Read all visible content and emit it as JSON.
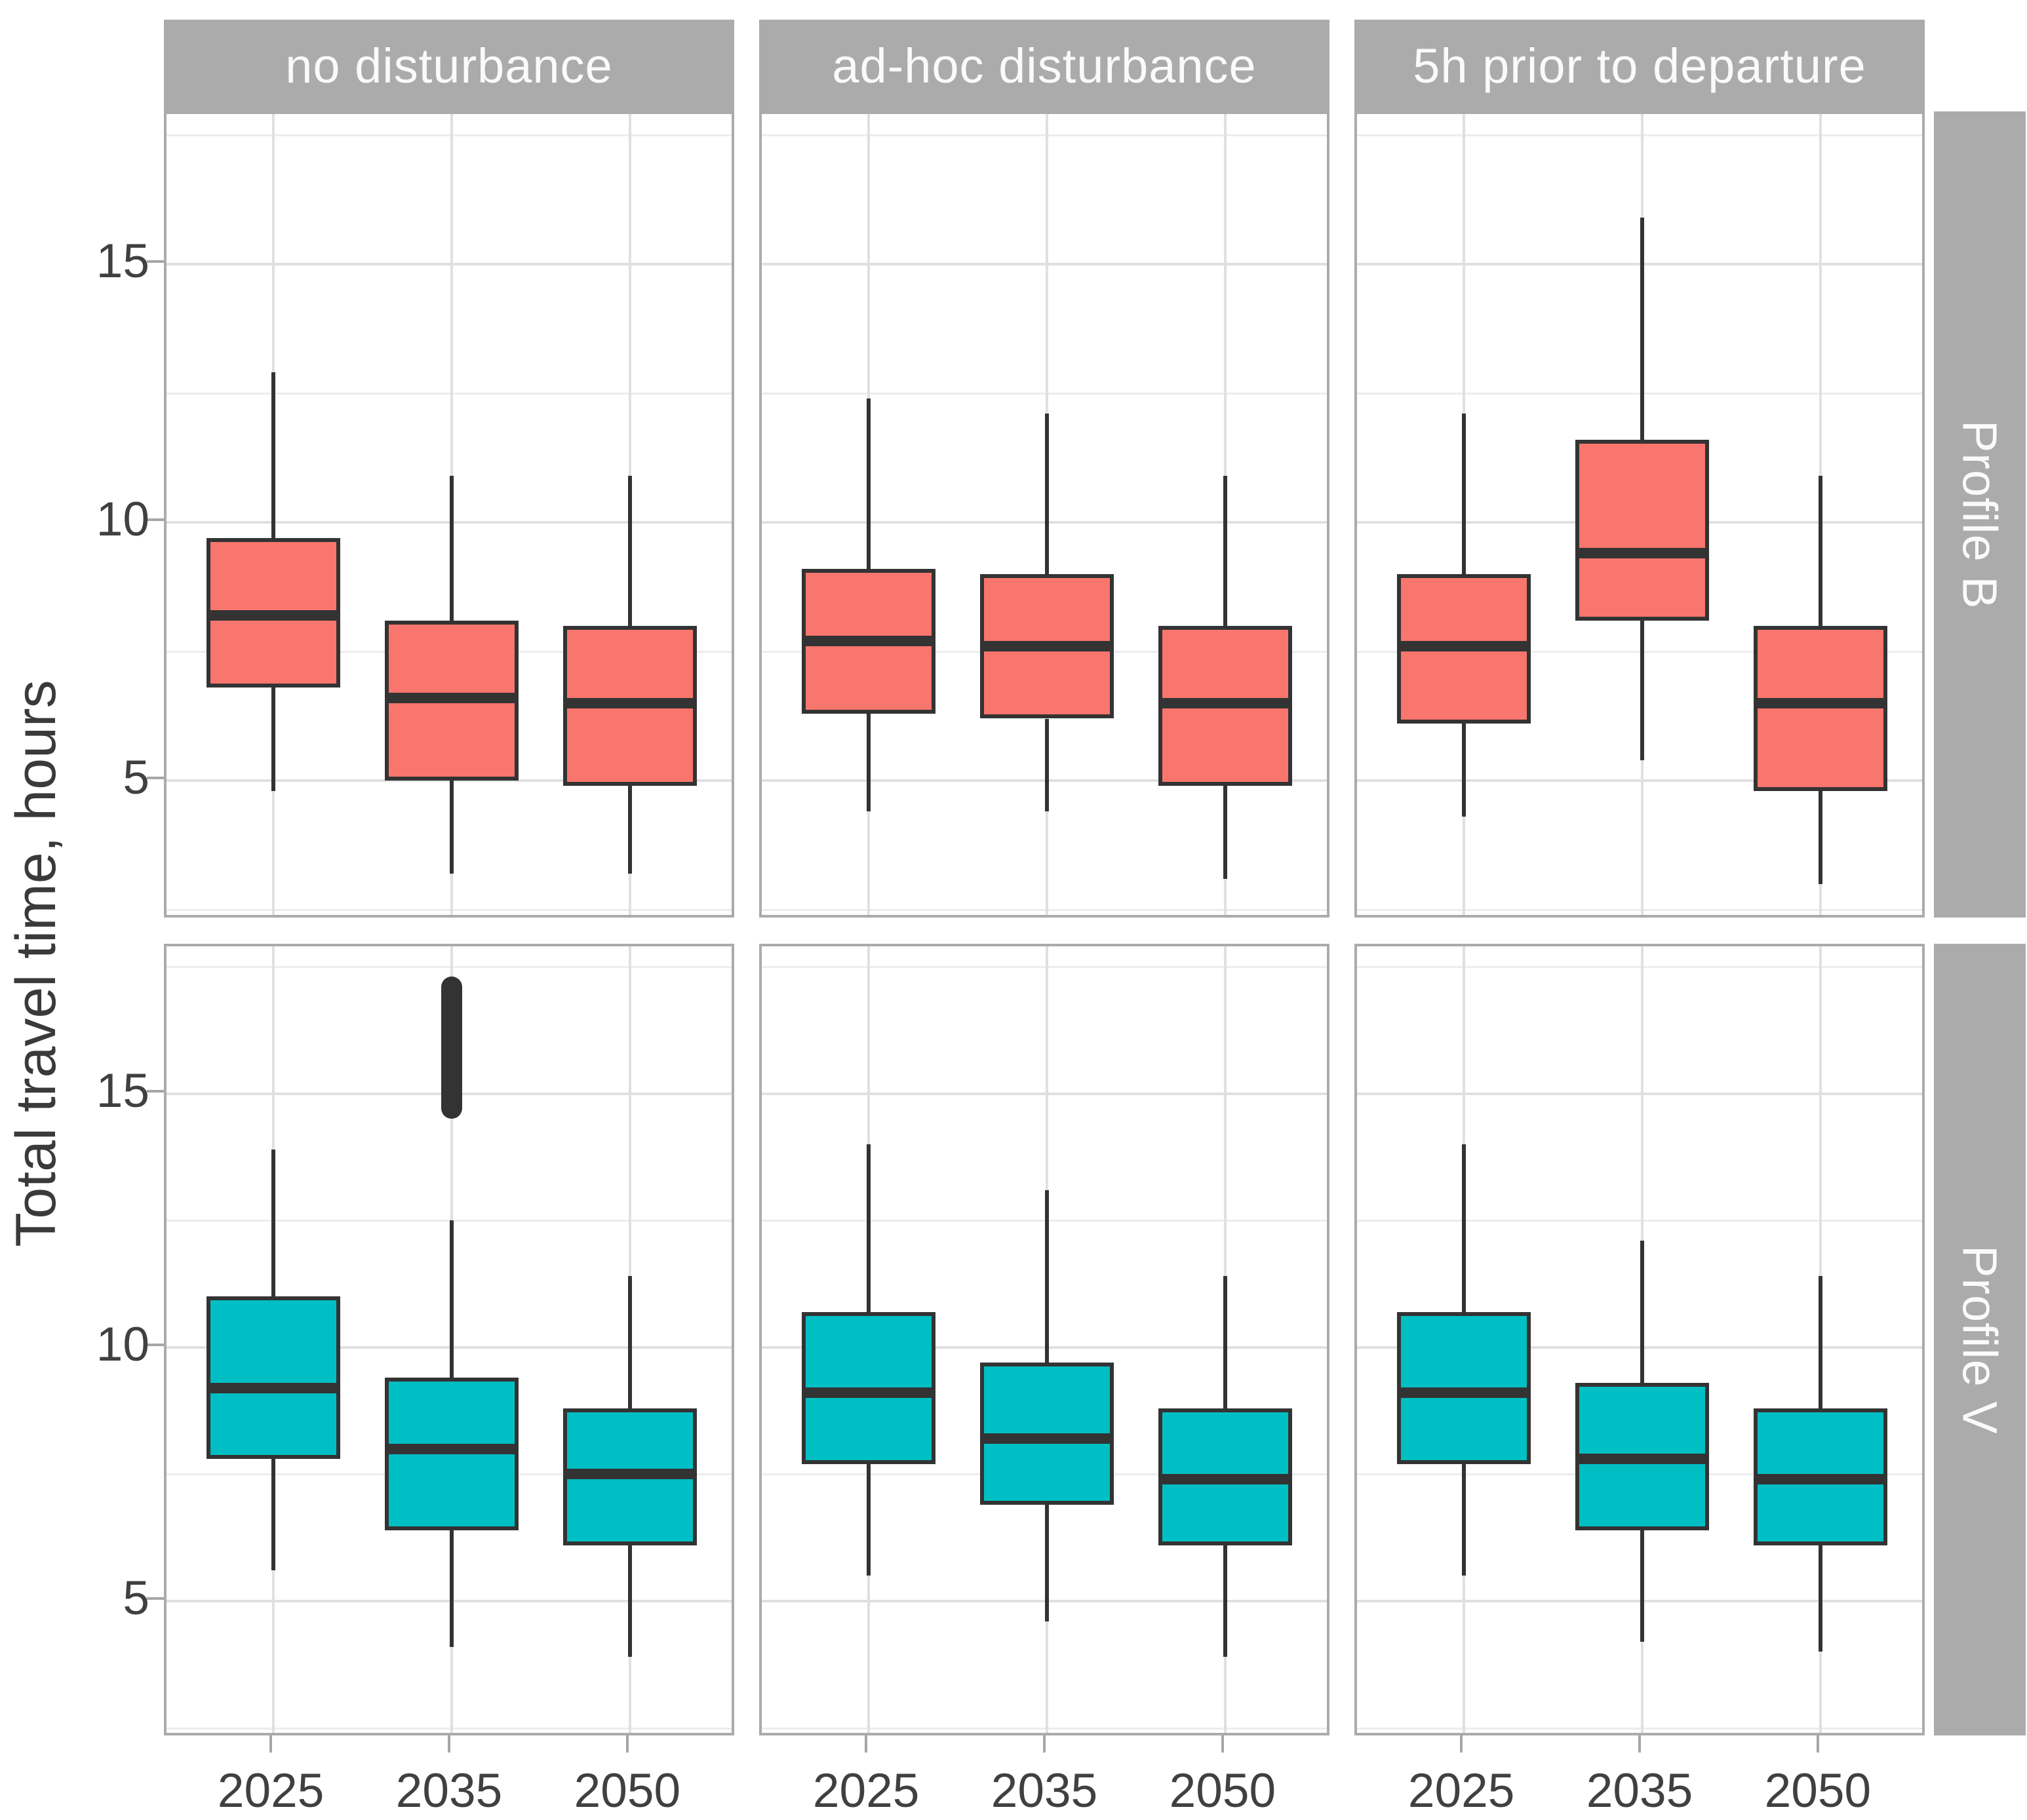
{
  "chart_data": {
    "type": "boxplot",
    "title": "",
    "ylabel": "Total travel time, hours",
    "xlabel": "",
    "x_categories": [
      "2025",
      "2035",
      "2050"
    ],
    "facet_columns": [
      "no disturbance",
      "ad-hoc disturbance",
      "5h prior to departure"
    ],
    "facet_rows": [
      "Profile B",
      "Profile V"
    ],
    "y_major_ticks": [
      15,
      10,
      5
    ],
    "y_minor_ticks": [
      17.5,
      12.5,
      7.5,
      2.5
    ],
    "ylim": [
      2.3,
      17.9
    ],
    "legend": "none",
    "grid": "horizontal major+minor, vertical major at categories",
    "series": [
      {
        "row_facet": "Profile B",
        "fill_color": "#F8766D",
        "panels": [
          {
            "col_facet": "no disturbance",
            "boxes": [
              {
                "x": "2025",
                "whisker_low": 4.8,
                "q1": 6.8,
                "median": 8.2,
                "q3": 9.7,
                "whisker_high": 12.9
              },
              {
                "x": "2035",
                "whisker_low": 3.2,
                "q1": 5.0,
                "median": 6.6,
                "q3": 8.1,
                "whisker_high": 10.9
              },
              {
                "x": "2050",
                "whisker_low": 3.2,
                "q1": 4.9,
                "median": 6.5,
                "q3": 8.0,
                "whisker_high": 10.9
              }
            ]
          },
          {
            "col_facet": "ad-hoc disturbance",
            "boxes": [
              {
                "x": "2025",
                "whisker_low": 4.4,
                "q1": 6.3,
                "median": 7.7,
                "q3": 9.1,
                "whisker_high": 12.4
              },
              {
                "x": "2035",
                "whisker_low": 4.4,
                "q1": 6.2,
                "median": 7.6,
                "q3": 9.0,
                "whisker_high": 12.1
              },
              {
                "x": "2050",
                "whisker_low": 3.1,
                "q1": 4.9,
                "median": 6.5,
                "q3": 8.0,
                "whisker_high": 10.9
              }
            ]
          },
          {
            "col_facet": "5h prior to departure",
            "boxes": [
              {
                "x": "2025",
                "whisker_low": 4.3,
                "q1": 6.1,
                "median": 7.6,
                "q3": 9.0,
                "whisker_high": 12.1
              },
              {
                "x": "2035",
                "whisker_low": 5.4,
                "q1": 8.1,
                "median": 9.4,
                "q3": 11.6,
                "whisker_high": 15.9
              },
              {
                "x": "2050",
                "whisker_low": 3.0,
                "q1": 4.8,
                "median": 6.5,
                "q3": 8.0,
                "whisker_high": 10.9
              }
            ]
          }
        ]
      },
      {
        "row_facet": "Profile V",
        "fill_color": "#00BFC4",
        "panels": [
          {
            "col_facet": "no disturbance",
            "boxes": [
              {
                "x": "2025",
                "whisker_low": 5.6,
                "q1": 7.8,
                "median": 9.2,
                "q3": 11.0,
                "whisker_high": 13.9
              },
              {
                "x": "2035",
                "whisker_low": 4.1,
                "q1": 6.4,
                "median": 8.0,
                "q3": 9.4,
                "whisker_high": 12.5,
                "outlier_cluster": [
                  14.5,
                  17.3
                ]
              },
              {
                "x": "2050",
                "whisker_low": 3.9,
                "q1": 6.1,
                "median": 7.5,
                "q3": 8.8,
                "whisker_high": 11.4
              }
            ]
          },
          {
            "col_facet": "ad-hoc disturbance",
            "boxes": [
              {
                "x": "2025",
                "whisker_low": 5.5,
                "q1": 7.7,
                "median": 9.1,
                "q3": 10.7,
                "whisker_high": 14.0
              },
              {
                "x": "2035",
                "whisker_low": 4.6,
                "q1": 6.9,
                "median": 8.2,
                "q3": 9.7,
                "whisker_high": 13.1
              },
              {
                "x": "2050",
                "whisker_low": 3.9,
                "q1": 6.1,
                "median": 7.4,
                "q3": 8.8,
                "whisker_high": 11.4
              }
            ]
          },
          {
            "col_facet": "5h prior to departure",
            "boxes": [
              {
                "x": "2025",
                "whisker_low": 5.5,
                "q1": 7.7,
                "median": 9.1,
                "q3": 10.7,
                "whisker_high": 14.0
              },
              {
                "x": "2035",
                "whisker_low": 4.2,
                "q1": 6.4,
                "median": 7.8,
                "q3": 9.3,
                "whisker_high": 12.1
              },
              {
                "x": "2050",
                "whisker_low": 4.0,
                "q1": 6.1,
                "median": 7.4,
                "q3": 8.8,
                "whisker_high": 11.4
              }
            ]
          }
        ]
      }
    ]
  },
  "style": {
    "strip_bg": "#ABABAB",
    "strip_text_color": "#FAFAFA",
    "panel_bg": "#FFFFFF",
    "panel_border": "#ABABAB",
    "grid_major": "#E0E0E0",
    "grid_minor": "#EDEDED",
    "box_line_color": "#333333",
    "axis_text_color": "#404040",
    "axis_title_color": "#3A3A3A",
    "tick_color": "#A6A6A6",
    "profile_b_fill": "#F8766D",
    "profile_v_fill": "#00BFC4"
  }
}
